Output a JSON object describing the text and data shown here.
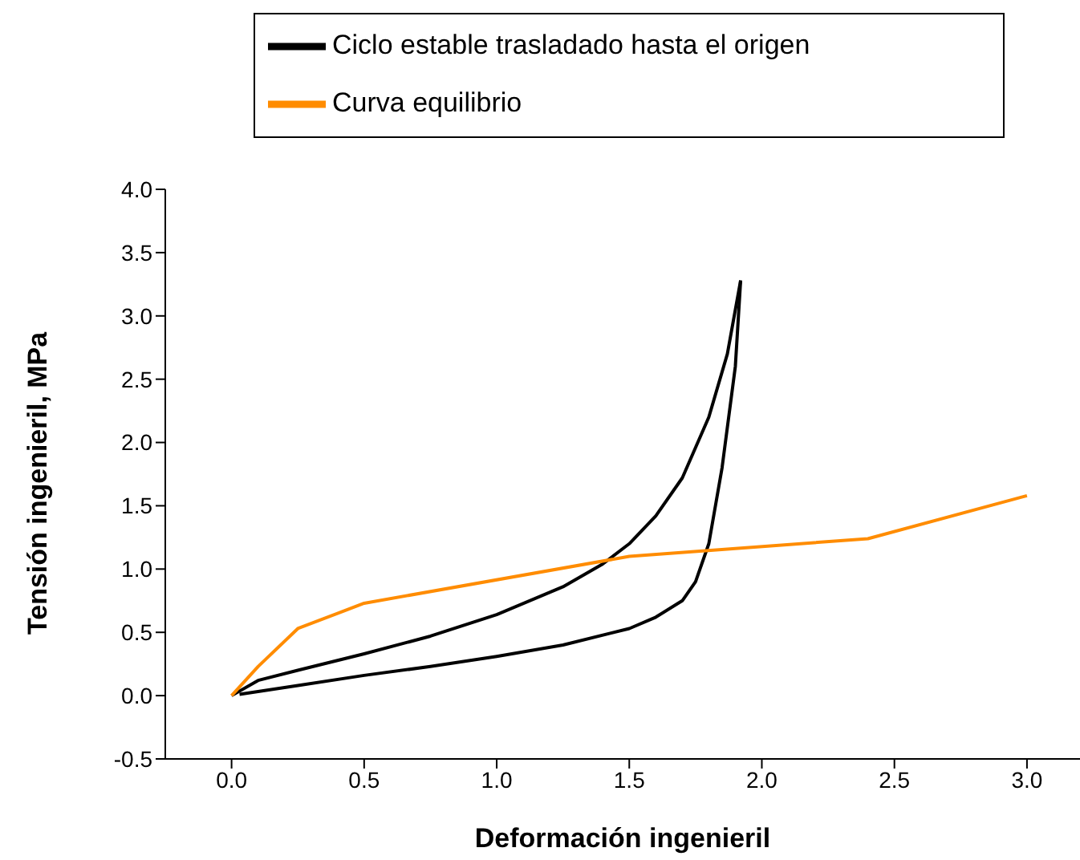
{
  "chart_data": {
    "type": "line",
    "xlabel": "Deformación ingenieril",
    "ylabel": "Tensión ingenieril, MPa",
    "xlim": [
      -0.25,
      3.2
    ],
    "xticks": [
      {
        "value": 0,
        "label": "0.0"
      },
      {
        "value": 0.5,
        "label": "0.5"
      },
      {
        "value": 1,
        "label": "1.0"
      },
      {
        "value": 1.5,
        "label": "1.5"
      },
      {
        "value": 2,
        "label": "2.0"
      },
      {
        "value": 2.5,
        "label": "2.5"
      },
      {
        "value": 3,
        "label": "3.0"
      }
    ],
    "ylim": [
      -0.5,
      4.0
    ],
    "yticks": [
      {
        "value": -0.5,
        "label": "-0.5"
      },
      {
        "value": 0,
        "label": "0.0"
      },
      {
        "value": 0.5,
        "label": "0.5"
      },
      {
        "value": 1,
        "label": "1.0"
      },
      {
        "value": 1.5,
        "label": "1.5"
      },
      {
        "value": 2,
        "label": "2.0"
      },
      {
        "value": 2.5,
        "label": "2.5"
      },
      {
        "value": 3,
        "label": "3.0"
      },
      {
        "value": 3.5,
        "label": "3.5"
      },
      {
        "value": 4,
        "label": "4.0"
      }
    ],
    "legend": "top",
    "marker": "none",
    "grid": false,
    "series": [
      {
        "name": "Ciclo estable trasladado hasta el origen",
        "color": "#000000",
        "x": [
          0,
          0.1,
          0.25,
          0.5,
          0.75,
          1.0,
          1.25,
          1.4,
          1.5,
          1.6,
          1.7,
          1.8,
          1.87,
          1.92
        ],
        "values": [
          0,
          0.12,
          0.2,
          0.33,
          0.47,
          0.64,
          0.86,
          1.04,
          1.2,
          1.42,
          1.72,
          2.2,
          2.7,
          3.28
        ]
      },
      {
        "color": "#000000",
        "x": [
          0.03,
          0.25,
          0.5,
          0.75,
          1.0,
          1.25,
          1.5,
          1.6,
          1.7,
          1.75,
          1.8,
          1.85,
          1.9,
          1.92
        ],
        "values": [
          0.01,
          0.08,
          0.16,
          0.23,
          0.31,
          0.4,
          0.53,
          0.62,
          0.75,
          0.9,
          1.2,
          1.8,
          2.6,
          3.28
        ]
      },
      {
        "name": "Curva equilibrio",
        "color": "#ff8c00",
        "x": [
          0,
          0.1,
          0.25,
          0.5,
          1.5,
          2.4,
          3.0
        ],
        "values": [
          0,
          0.23,
          0.53,
          0.73,
          1.1,
          1.24,
          1.58
        ]
      }
    ]
  }
}
